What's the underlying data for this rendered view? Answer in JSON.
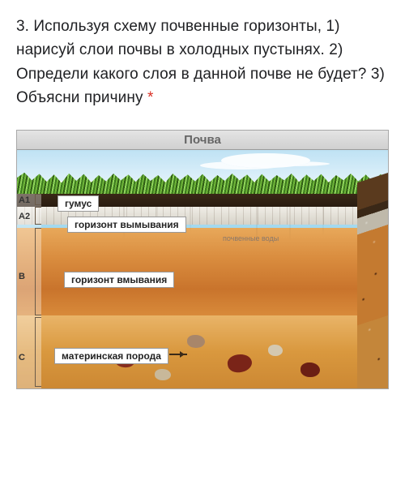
{
  "question": {
    "prefix": "3. Используя схему почвенные горизонты, 1) нарисуй слои почвы в холодных пустынях. 2) Определи какого слоя в данной почве не будет? 3) Объясни причину",
    "required_marker": "*"
  },
  "diagram": {
    "title": "Почва",
    "axis": {
      "a1": "A1",
      "a2": "A2",
      "b": "B",
      "c": "C"
    },
    "layers": {
      "a1_label": "гумус",
      "a2_label": "горизонт вымывания",
      "water_note": "почвенные воды",
      "b_label": "горизонт вмывания",
      "c_label": "материнская порода"
    },
    "colors": {
      "sky": "#bfe2f4",
      "grass_dark": "#3d7a1f",
      "grass_light": "#8fd45a",
      "humus": "#2a1c10",
      "eluvial": "#e8e5dc",
      "water": "#7cc9e8",
      "illuvial_top": "#e8a85a",
      "illuvial_bot": "#c9742c",
      "parent_top": "#e9b468",
      "parent_bot": "#cc8833",
      "rock_red": "#7a2418",
      "rock_pale": "#c8b89a"
    }
  }
}
